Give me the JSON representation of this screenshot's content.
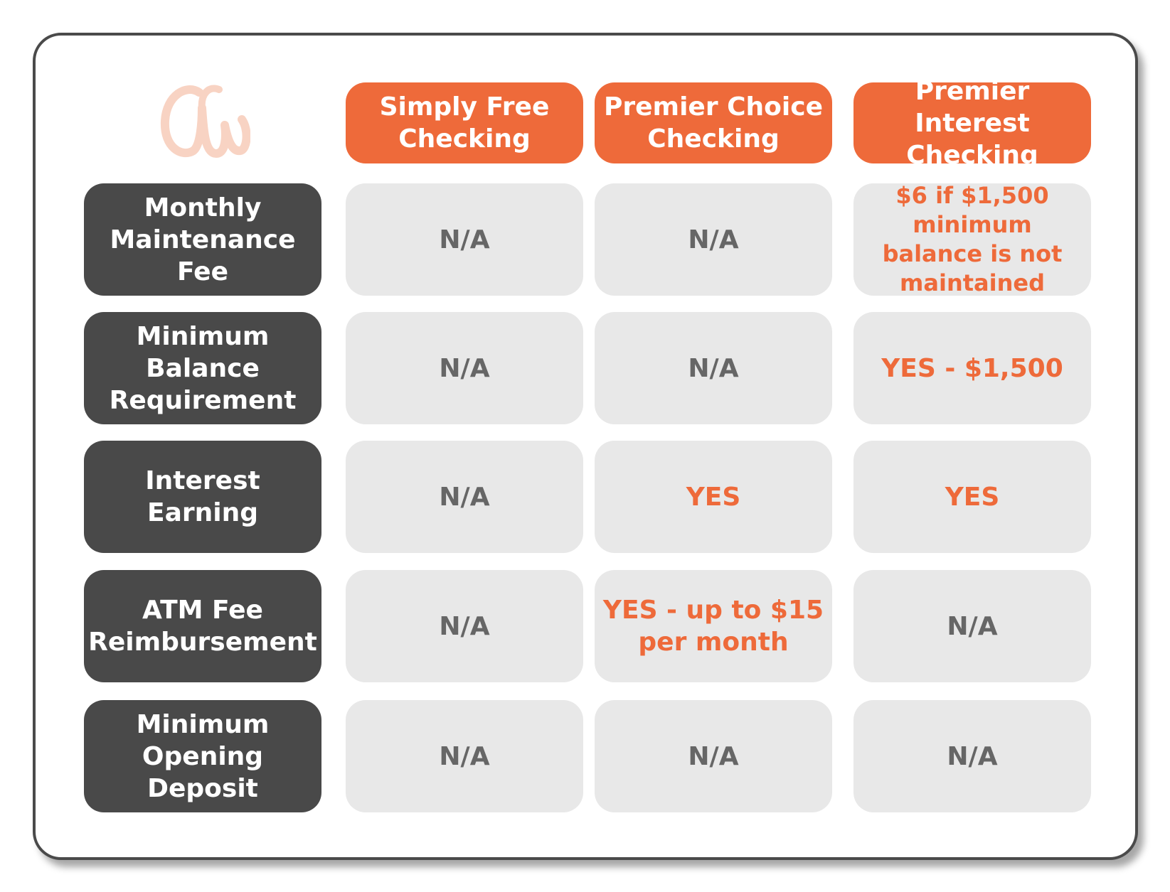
{
  "colors": {
    "accent": "#ee6a3a",
    "row_label_bg": "#494949",
    "cell_bg": "#e8e8e8",
    "na_text": "#666666",
    "logo": "#f8d3c3"
  },
  "logo": {
    "icon": "cw-script-logo-icon"
  },
  "columns": [
    {
      "label": "Simply Free Checking"
    },
    {
      "label": "Premier Choice Checking"
    },
    {
      "label": "Premier Interest Checking"
    }
  ],
  "rows": [
    {
      "label": "Monthly Maintenance Fee",
      "cells": [
        "N/A",
        "N/A",
        "$6 if $1,500 minimum balance is not maintained"
      ]
    },
    {
      "label": "Minimum Balance Requirement",
      "cells": [
        "N/A",
        "N/A",
        "YES - $1,500"
      ]
    },
    {
      "label": "Interest Earning",
      "cells": [
        "N/A",
        "YES",
        "YES"
      ]
    },
    {
      "label": "ATM Fee Reimbursement",
      "cells": [
        "N/A",
        "YES - up to $15 per month",
        "N/A"
      ]
    },
    {
      "label": "Minimum Opening Deposit",
      "cells": [
        "N/A",
        "N/A",
        "N/A"
      ]
    }
  ]
}
